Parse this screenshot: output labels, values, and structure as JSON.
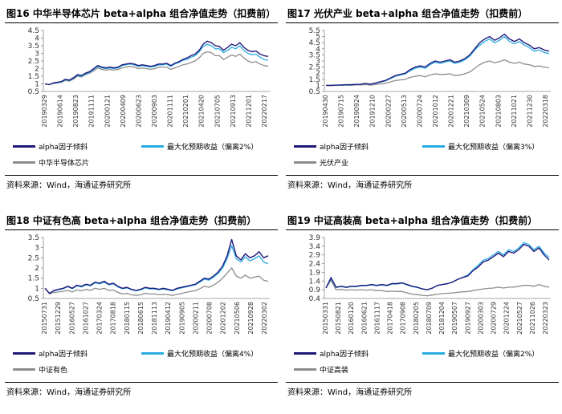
{
  "panels": [
    {
      "title": "图16  中华半导体芯片 beta+alpha 组合净值走势（扣费前）",
      "source": "资料来源：Wind，海通证券研究所",
      "chart_data": {
        "type": "line",
        "yticks": [
          "0.5",
          "1",
          "1.5",
          "2",
          "2.5",
          "3",
          "3.5",
          "4",
          "4.5"
        ],
        "ylim": [
          0.5,
          4.5
        ],
        "xticks": [
          "20190329",
          "20190614",
          "20190823",
          "20191111",
          "20200121",
          "20200409",
          "20200623",
          "20200903",
          "20201111",
          "20210201",
          "20210420",
          "20210705",
          "20210913",
          "20211201",
          "20220217"
        ],
        "series": [
          {
            "name": "alpha因子倾斜",
            "color": "#1f1a7a",
            "values": [
              1,
              0.95,
              1.05,
              1.1,
              1.15,
              1.3,
              1.25,
              1.4,
              1.6,
              1.55,
              1.7,
              1.8,
              2.0,
              2.2,
              2.1,
              2.05,
              2.1,
              2.05,
              2.1,
              2.25,
              2.3,
              2.35,
              2.3,
              2.2,
              2.25,
              2.2,
              2.15,
              2.2,
              2.3,
              2.3,
              2.35,
              2.2,
              2.35,
              2.45,
              2.6,
              2.7,
              2.85,
              2.95,
              3.2,
              3.6,
              3.8,
              3.7,
              3.5,
              3.45,
              3.2,
              3.4,
              3.6,
              3.5,
              3.7,
              3.4,
              3.2,
              3.1,
              3.15,
              2.95,
              2.85,
              2.8
            ]
          },
          {
            "name": "最大化预期收益（偏离2%）",
            "color": "#29abe2",
            "values": [
              1,
              0.95,
              1.03,
              1.08,
              1.12,
              1.27,
              1.22,
              1.36,
              1.55,
              1.5,
              1.65,
              1.75,
              1.95,
              2.15,
              2.05,
              2.0,
              2.05,
              2.0,
              2.05,
              2.2,
              2.25,
              2.3,
              2.25,
              2.15,
              2.2,
              2.15,
              2.1,
              2.15,
              2.25,
              2.25,
              2.3,
              2.15,
              2.3,
              2.4,
              2.55,
              2.6,
              2.75,
              2.85,
              3.1,
              3.45,
              3.6,
              3.5,
              3.3,
              3.3,
              3.05,
              3.2,
              3.4,
              3.3,
              3.5,
              3.2,
              3.0,
              2.9,
              2.95,
              2.75,
              2.6,
              2.55
            ]
          },
          {
            "name": "中华半导体芯片",
            "color": "#8c8c8c",
            "values": [
              1,
              0.95,
              1.02,
              1.05,
              1.1,
              1.22,
              1.18,
              1.3,
              1.5,
              1.45,
              1.6,
              1.7,
              1.85,
              2.05,
              1.95,
              1.9,
              1.95,
              1.9,
              1.95,
              2.05,
              2.1,
              2.15,
              2.1,
              2.0,
              2.05,
              2.0,
              1.95,
              2.0,
              2.1,
              2.1,
              2.1,
              1.95,
              2.05,
              2.15,
              2.25,
              2.3,
              2.4,
              2.5,
              2.7,
              3.0,
              3.1,
              3.05,
              2.85,
              2.85,
              2.6,
              2.75,
              2.9,
              2.8,
              2.95,
              2.7,
              2.5,
              2.4,
              2.45,
              2.3,
              2.2,
              2.15
            ]
          }
        ]
      }
    },
    {
      "title": "图17 光伏产业 beta+alpha 组合净值走势（扣费前）",
      "source": "资料来源：Wind，海通证券研究所",
      "chart_data": {
        "type": "line",
        "yticks": [
          "0.5",
          "1",
          "1.5",
          "2",
          "2.5",
          "3",
          "3.5",
          "4",
          "4.5",
          "5",
          "5.5"
        ],
        "ylim": [
          0.5,
          5.5
        ],
        "xticks": [
          "20190430",
          "20190715",
          "20190924",
          "20191210",
          "20200227",
          "20200513",
          "20200724",
          "20201012",
          "20201221",
          "20210309",
          "20210524",
          "20210803",
          "20211021",
          "20211230",
          "20220318"
        ],
        "series": [
          {
            "name": "alpha因子倾斜",
            "color": "#1f1a7a",
            "values": [
              1,
              1.0,
              1.02,
              1.03,
              1.05,
              1.05,
              1.08,
              1.1,
              1.15,
              1.1,
              1.2,
              1.3,
              1.4,
              1.6,
              1.8,
              1.9,
              2.0,
              2.3,
              2.5,
              2.6,
              2.5,
              2.8,
              3.0,
              2.9,
              3.0,
              3.1,
              2.9,
              3.0,
              3.2,
              3.5,
              4.0,
              4.5,
              4.8,
              5.0,
              4.7,
              4.9,
              5.2,
              4.8,
              4.6,
              4.8,
              4.5,
              4.3,
              4.0,
              4.1,
              3.9,
              3.8
            ]
          },
          {
            "name": "最大化预期收益（偏离3%）",
            "color": "#29abe2",
            "values": [
              1,
              1.0,
              1.01,
              1.02,
              1.04,
              1.04,
              1.07,
              1.09,
              1.13,
              1.08,
              1.18,
              1.27,
              1.37,
              1.55,
              1.75,
              1.85,
              1.95,
              2.2,
              2.4,
              2.5,
              2.4,
              2.7,
              2.9,
              2.8,
              2.9,
              3.0,
              2.8,
              2.9,
              3.1,
              3.4,
              3.9,
              4.3,
              4.6,
              4.8,
              4.5,
              4.7,
              5.0,
              4.6,
              4.4,
              4.6,
              4.3,
              4.1,
              3.8,
              3.9,
              3.7,
              3.6
            ]
          },
          {
            "name": "光伏产业",
            "color": "#8c8c8c",
            "values": [
              1,
              0.98,
              1.0,
              1.0,
              1.02,
              1.0,
              1.03,
              1.04,
              1.06,
              1.02,
              1.08,
              1.12,
              1.18,
              1.28,
              1.4,
              1.45,
              1.5,
              1.65,
              1.75,
              1.8,
              1.7,
              1.85,
              1.95,
              1.9,
              1.9,
              1.95,
              1.8,
              1.85,
              1.95,
              2.1,
              2.4,
              2.7,
              2.9,
              3.0,
              2.85,
              2.95,
              3.1,
              2.9,
              2.8,
              2.9,
              2.75,
              2.7,
              2.55,
              2.6,
              2.5,
              2.45
            ]
          }
        ]
      }
    },
    {
      "title": "图18 中证有色高 beta+alpha 组合净值走势（扣费前）",
      "source": "资料来源：Wind，海通证券研究所",
      "chart_data": {
        "type": "line",
        "yticks": [
          "0.5",
          "1",
          "1.5",
          "2",
          "2.5",
          "3",
          "3.5"
        ],
        "ylim": [
          0.5,
          3.5
        ],
        "xticks": [
          "20150731",
          "20151229",
          "20160527",
          "20161027",
          "20170324",
          "20170818",
          "20180115",
          "20180615",
          "20181113",
          "20190412",
          "20190905",
          "20200211",
          "20200708",
          "20201202",
          "20210506",
          "20210928",
          "20220302"
        ],
        "series": [
          {
            "name": "alpha因子倾斜",
            "color": "#1f1a7a",
            "values": [
              1,
              0.75,
              0.9,
              0.95,
              1.0,
              1.1,
              1.0,
              1.15,
              1.1,
              1.2,
              1.15,
              1.3,
              1.25,
              1.35,
              1.2,
              1.25,
              1.1,
              1.0,
              1.05,
              0.95,
              0.9,
              0.95,
              1.05,
              1.0,
              1.0,
              0.95,
              1.0,
              0.95,
              0.9,
              1.0,
              1.05,
              1.1,
              1.15,
              1.2,
              1.35,
              1.5,
              1.45,
              1.6,
              1.8,
              2.1,
              2.6,
              3.4,
              2.6,
              2.4,
              2.7,
              2.5,
              2.6,
              2.8,
              2.5,
              2.6
            ]
          },
          {
            "name": "最大化预期收益（偏离4%）",
            "color": "#29abe2",
            "values": [
              1,
              0.76,
              0.88,
              0.93,
              0.98,
              1.08,
              0.98,
              1.12,
              1.07,
              1.17,
              1.12,
              1.27,
              1.22,
              1.3,
              1.17,
              1.22,
              1.07,
              0.98,
              1.02,
              0.93,
              0.88,
              0.92,
              1.02,
              0.97,
              0.97,
              0.93,
              0.97,
              0.92,
              0.88,
              0.97,
              1.02,
              1.07,
              1.12,
              1.17,
              1.3,
              1.45,
              1.4,
              1.55,
              1.72,
              2.0,
              2.45,
              3.1,
              2.45,
              2.3,
              2.55,
              2.35,
              2.45,
              2.6,
              2.3,
              2.2
            ]
          },
          {
            "name": "中证有色",
            "color": "#8c8c8c",
            "values": [
              1,
              0.72,
              0.8,
              0.82,
              0.85,
              0.9,
              0.82,
              0.92,
              0.88,
              0.95,
              0.9,
              1.0,
              0.95,
              1.0,
              0.9,
              0.92,
              0.8,
              0.72,
              0.75,
              0.68,
              0.65,
              0.68,
              0.75,
              0.72,
              0.72,
              0.68,
              0.7,
              0.68,
              0.65,
              0.7,
              0.75,
              0.8,
              0.85,
              0.88,
              0.98,
              1.1,
              1.05,
              1.15,
              1.3,
              1.5,
              1.75,
              2.0,
              1.6,
              1.5,
              1.65,
              1.5,
              1.55,
              1.6,
              1.4,
              1.35
            ]
          }
        ]
      }
    },
    {
      "title": "图19 中证高装高 beta+alpha 组合净值走势（扣费前）",
      "source": "资料来源：Wind，海通证券研究所",
      "chart_data": {
        "type": "line",
        "yticks": [
          "0.4",
          "0.9",
          "1.4",
          "1.9",
          "2.4",
          "2.9",
          "3.4",
          "3.9"
        ],
        "ylim": [
          0.4,
          3.9
        ],
        "xticks": [
          "20150331",
          "20150821",
          "20160120",
          "20160621",
          "20161117",
          "20170418",
          "20170908",
          "20180205",
          "20180709",
          "20181204",
          "20190507",
          "20190927",
          "20200303",
          "20200729",
          "20201224",
          "20210527",
          "20211026",
          "20220323"
        ],
        "series": [
          {
            "name": "alpha因子倾斜",
            "color": "#1f1a7a",
            "values": [
              1,
              1.6,
              1.05,
              1.1,
              1.05,
              1.1,
              1.1,
              1.15,
              1.15,
              1.2,
              1.15,
              1.2,
              1.15,
              1.25,
              1.25,
              1.3,
              1.2,
              1.1,
              1.05,
              0.95,
              0.9,
              1.0,
              1.15,
              1.2,
              1.25,
              1.35,
              1.5,
              1.6,
              1.7,
              2.0,
              2.2,
              2.5,
              2.6,
              2.8,
              3.0,
              2.8,
              3.1,
              3.0,
              3.2,
              3.5,
              3.4,
              3.1,
              3.3,
              2.9,
              2.6
            ]
          },
          {
            "name": "最大化预期收益（偏离2%）",
            "color": "#29abe2",
            "values": [
              1,
              1.55,
              1.03,
              1.08,
              1.03,
              1.08,
              1.08,
              1.13,
              1.13,
              1.18,
              1.13,
              1.18,
              1.13,
              1.23,
              1.23,
              1.28,
              1.18,
              1.08,
              1.03,
              0.95,
              0.9,
              1.0,
              1.15,
              1.2,
              1.25,
              1.35,
              1.5,
              1.62,
              1.75,
              2.05,
              2.3,
              2.6,
              2.7,
              2.9,
              3.1,
              2.9,
              3.2,
              3.1,
              3.3,
              3.6,
              3.5,
              3.2,
              3.4,
              3.0,
              2.75
            ]
          },
          {
            "name": "中证高装",
            "color": "#8c8c8c",
            "values": [
              1,
              1.45,
              0.9,
              0.92,
              0.88,
              0.9,
              0.88,
              0.9,
              0.88,
              0.9,
              0.85,
              0.85,
              0.8,
              0.82,
              0.8,
              0.8,
              0.72,
              0.65,
              0.62,
              0.58,
              0.55,
              0.6,
              0.65,
              0.68,
              0.7,
              0.72,
              0.75,
              0.78,
              0.8,
              0.85,
              0.9,
              0.95,
              0.98,
              1.0,
              1.05,
              1.0,
              1.05,
              1.05,
              1.1,
              1.15,
              1.15,
              1.1,
              1.2,
              1.1,
              1.05
            ]
          }
        ]
      }
    }
  ]
}
